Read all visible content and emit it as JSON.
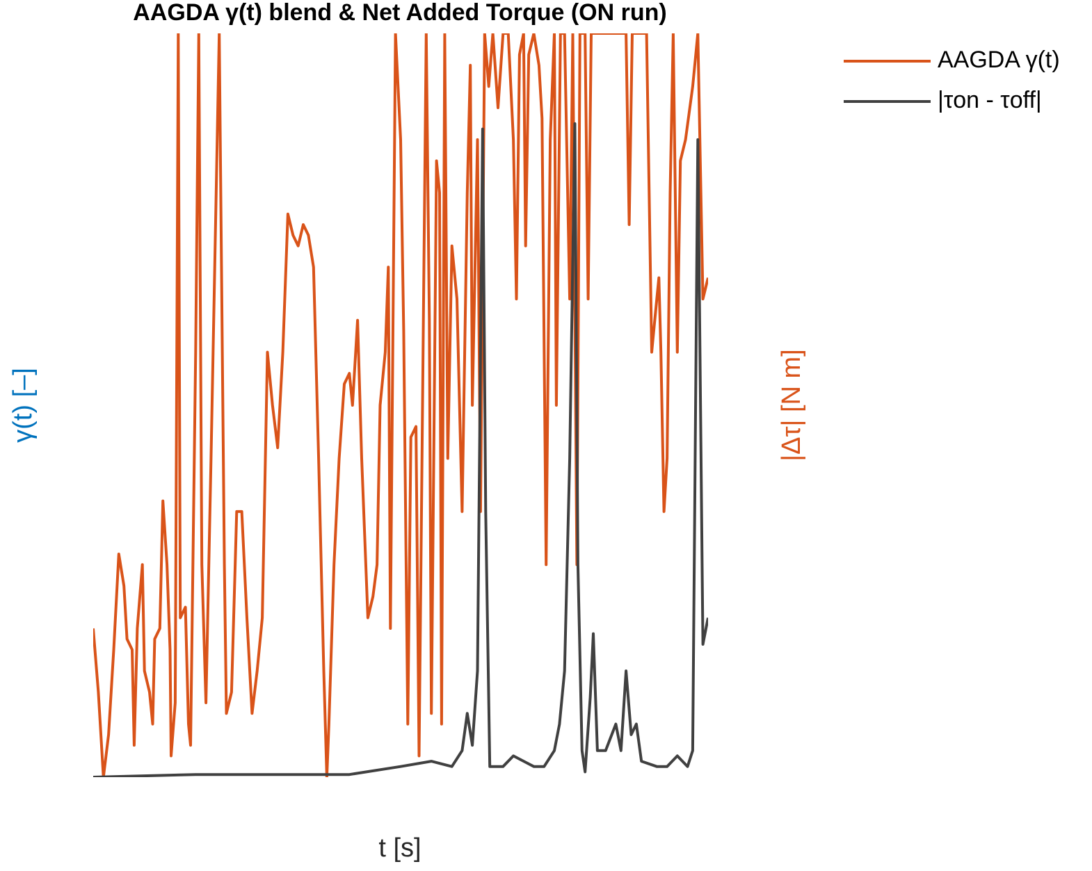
{
  "chart_data": {
    "type": "line",
    "title": "AAGDA γ(t) blend & Net Added Torque (ON run)",
    "xlabel": "t [s]",
    "ylabel": "γ(t) [–]",
    "y2label": "|Δτ| [N m]",
    "xlim": [
      0,
      60
    ],
    "xticks": [
      0,
      10,
      20,
      30,
      40,
      50,
      60
    ],
    "ylim": [
      0,
      0.7
    ],
    "yticks": [
      0,
      0.1,
      0.2,
      0.3,
      0.4,
      0.5,
      0.6,
      0.7
    ],
    "y2lim": [
      0,
      1.4
    ],
    "y2ticks": [
      0,
      0.2,
      0.4,
      0.6,
      0.8,
      1,
      1.2,
      1.4
    ],
    "grid": true,
    "legend": "outside-top-right",
    "series": [
      {
        "name": "AAGDA γ(t)",
        "color": "#d95319",
        "x": [
          0,
          0.5,
          1,
          1.5,
          2,
          2.5,
          3,
          3.3,
          3.8,
          4,
          4.3,
          4.8,
          5,
          5.5,
          5.8,
          6,
          6.5,
          6.8,
          7.2,
          7.5,
          7.6,
          8,
          8.3,
          8.5,
          9,
          9.3,
          9.5,
          10,
          10.3,
          10.6,
          11,
          11.5,
          12,
          12.3,
          12.8,
          13,
          13.5,
          14,
          14.5,
          15,
          15.5,
          16,
          16.5,
          17,
          17.5,
          18,
          18.5,
          19,
          19.5,
          20,
          20.5,
          21,
          21.5,
          22,
          22.5,
          22.8,
          23,
          23.5,
          24,
          24.5,
          25,
          25.3,
          25.8,
          26.2,
          26.8,
          27.3,
          27.7,
          28,
          28.5,
          28.8,
          29,
          29.5,
          30,
          30.3,
          30.7,
          31,
          31.5,
          31.8,
          32.5,
          32.8,
          33,
          33.5,
          33.8,
          34,
          34.3,
          34.6,
          35,
          35.5,
          36,
          36.5,
          36.8,
          37,
          37.5,
          37.8,
          38.2,
          38.6,
          39,
          39.5,
          40,
          40.5,
          41,
          41.3,
          41.6,
          42,
          42.2,
          42.5,
          43,
          43.5,
          43.8,
          44.2,
          44.6,
          45,
          45.2,
          45.6,
          46,
          46.5,
          46.8,
          47.2,
          47.5,
          48,
          48.3,
          48.6,
          52,
          52.3,
          52.6,
          54,
          54.5,
          55,
          55.2,
          55.4,
          55.7,
          56,
          56.3,
          56.6,
          57,
          57.3,
          57.8,
          58.5,
          59,
          59.5,
          60
        ],
        "values": [
          0.14,
          0.08,
          0,
          0.04,
          0.12,
          0.21,
          0.18,
          0.13,
          0.12,
          0.03,
          0.14,
          0.2,
          0.1,
          0.08,
          0.05,
          0.13,
          0.14,
          0.26,
          0.2,
          0.12,
          0.02,
          0.07,
          0.7,
          0.15,
          0.16,
          0.05,
          0.03,
          0.4,
          0.7,
          0.2,
          0.07,
          0.3,
          0.55,
          0.7,
          0.2,
          0.06,
          0.08,
          0.25,
          0.25,
          0.15,
          0.06,
          0.1,
          0.15,
          0.4,
          0.35,
          0.31,
          0.4,
          0.53,
          0.51,
          0.5,
          0.52,
          0.51,
          0.48,
          0.3,
          0.1,
          0,
          0.05,
          0.2,
          0.3,
          0.37,
          0.38,
          0.35,
          0.43,
          0.3,
          0.15,
          0.17,
          0.2,
          0.35,
          0.4,
          0.48,
          0.14,
          0.7,
          0.6,
          0.42,
          0.05,
          0.32,
          0.33,
          0.02,
          0.7,
          0.43,
          0.06,
          0.58,
          0.55,
          0.05,
          0.7,
          0.3,
          0.5,
          0.45,
          0.25,
          0.55,
          0.67,
          0.35,
          0.6,
          0.25,
          0.7,
          0.65,
          0.7,
          0.63,
          0.7,
          0.7,
          0.6,
          0.45,
          0.68,
          0.7,
          0.5,
          0.68,
          0.7,
          0.67,
          0.62,
          0.2,
          0.6,
          0.7,
          0.35,
          0.7,
          0.7,
          0.45,
          0.7,
          0.2,
          0.7,
          0.7,
          0.45,
          0.7,
          0.7,
          0.52,
          0.7,
          0.7,
          0.4,
          0.45,
          0.47,
          0.4,
          0.25,
          0.3,
          0.55,
          0.7,
          0.4,
          0.58,
          0.6,
          0.65,
          0.7,
          0.45,
          0.47
        ]
      },
      {
        "name": "|τon - τoff|",
        "color": "#404040",
        "axis": "y2",
        "x": [
          0,
          10,
          20,
          25,
          30,
          33,
          35,
          36,
          36.5,
          37,
          37.5,
          38,
          38.3,
          38.7,
          40,
          41,
          43,
          44,
          45,
          45.5,
          46,
          46.5,
          47,
          47.3,
          47.7,
          48,
          48.5,
          48.8,
          49.2,
          50,
          51,
          51.5,
          52,
          52.5,
          53,
          53.5,
          55,
          56,
          57,
          58,
          58.5,
          59,
          59.5,
          60
        ],
        "values": [
          0,
          0.005,
          0.005,
          0.005,
          0.02,
          0.03,
          0.02,
          0.05,
          0.12,
          0.06,
          0.2,
          1.22,
          0.5,
          0.02,
          0.02,
          0.04,
          0.02,
          0.02,
          0.05,
          0.1,
          0.2,
          0.6,
          1.23,
          0.4,
          0.05,
          0.01,
          0.15,
          0.27,
          0.05,
          0.05,
          0.1,
          0.05,
          0.2,
          0.08,
          0.1,
          0.03,
          0.02,
          0.02,
          0.04,
          0.02,
          0.05,
          1.2,
          0.25,
          0.3
        ]
      }
    ]
  }
}
